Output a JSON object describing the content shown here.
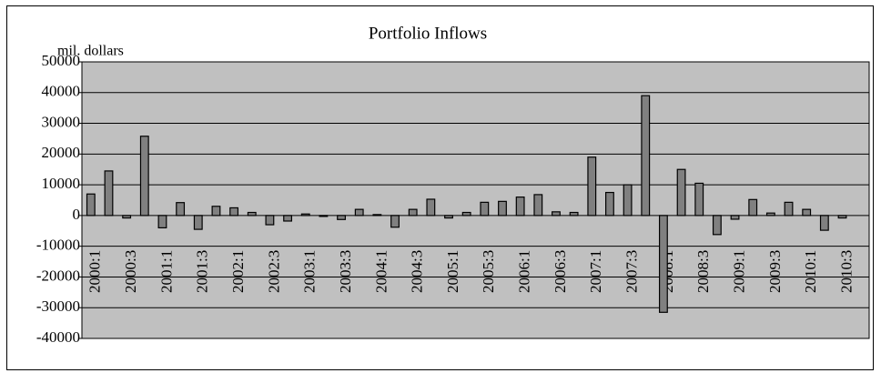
{
  "chart_data": {
    "type": "bar",
    "title": "Portfolio Inflows",
    "y_label": "mil. dollars",
    "categories": [
      "2000:1",
      null,
      "2000:3",
      null,
      "2001:1",
      null,
      "2001:3",
      null,
      "2002:1",
      null,
      "2002:3",
      null,
      "2003:1",
      null,
      "2003:3",
      null,
      "2004:1",
      null,
      "2004:3",
      null,
      "2005:1",
      null,
      "2005:3",
      null,
      "2006:1",
      null,
      "2006:3",
      null,
      "2007:1",
      null,
      "2007:3",
      null,
      "2008:1",
      null,
      "2008:3",
      null,
      "2009:1",
      null,
      "2009:3",
      null,
      "2010:1",
      null,
      "2010:3",
      null
    ],
    "values": [
      7000,
      14500,
      -800,
      25800,
      -4000,
      4200,
      -4500,
      3000,
      2500,
      1000,
      -3000,
      -1800,
      500,
      -300,
      -1300,
      2000,
      300,
      -3800,
      2000,
      5300,
      -800,
      1000,
      4300,
      4600,
      6000,
      6800,
      1200,
      1000,
      19000,
      7500,
      10000,
      39000,
      -31500,
      15000,
      10500,
      -6200,
      -1200,
      5200,
      800,
      4300,
      2000,
      -4800,
      -800,
      null
    ],
    "color": "#808080",
    "background": "#c0c0c0",
    "ylim": [
      -40000,
      50000
    ],
    "yticks": [
      -40000,
      -30000,
      -20000,
      -10000,
      0,
      10000,
      20000,
      30000,
      40000,
      50000
    ],
    "grid": true
  }
}
